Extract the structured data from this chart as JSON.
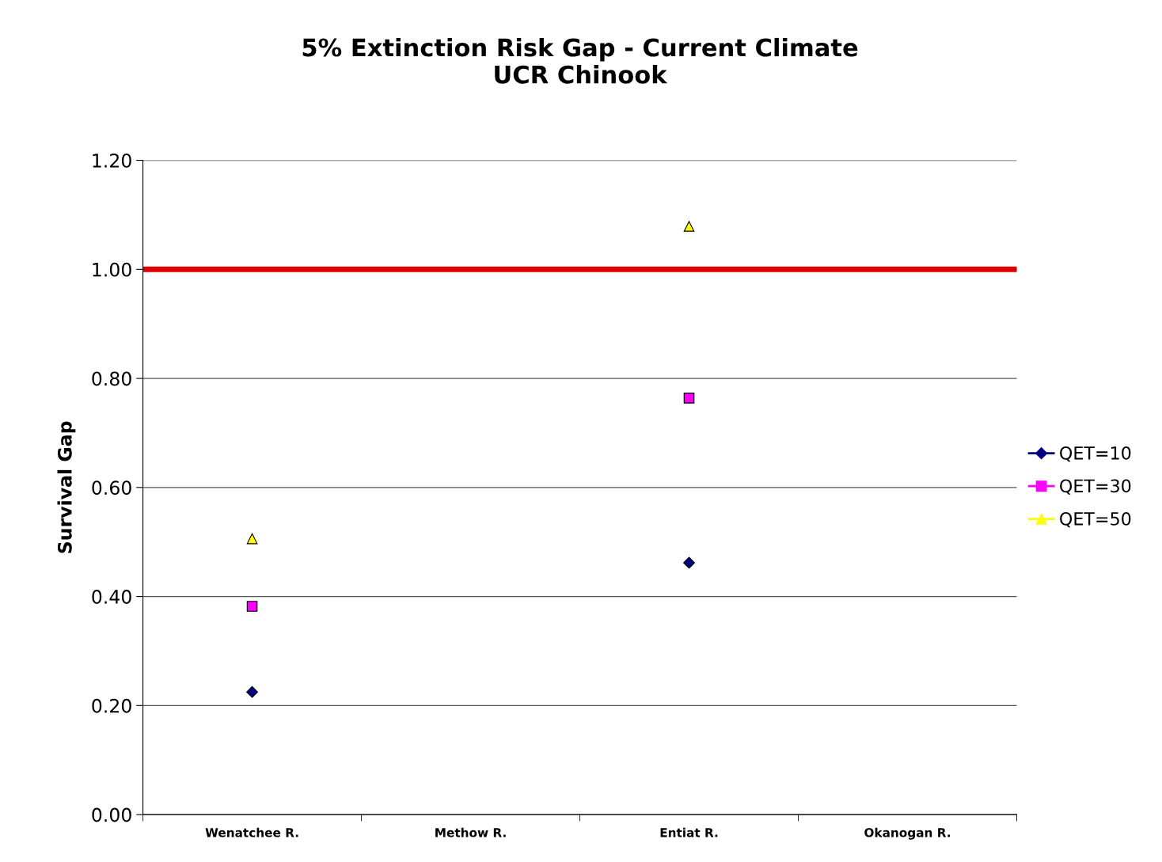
{
  "chart_data": {
    "type": "scatter",
    "title": "5% Extinction Risk Gap - Current Climate\nUCR Chinook",
    "ylabel": "Survival Gap",
    "categories": [
      "Wenatchee R.",
      "Methow R.",
      "Entiat R.",
      "Okanogan R."
    ],
    "series": [
      {
        "name": "QET=10",
        "color": "#000080",
        "marker": "diamond",
        "values": [
          0.225,
          null,
          0.462,
          null
        ]
      },
      {
        "name": "QET=30",
        "color": "#ff00ff",
        "marker": "square",
        "values": [
          0.382,
          null,
          0.764,
          null
        ]
      },
      {
        "name": "QET=50",
        "color": "#ffff00",
        "marker": "triangle",
        "values": [
          0.506,
          null,
          1.079,
          null
        ]
      }
    ],
    "ylim": [
      0,
      1.2
    ],
    "yticks": [
      {
        "value": 0,
        "label": "0.00"
      },
      {
        "value": 0.2,
        "label": "0.20"
      },
      {
        "value": 0.4,
        "label": "0.40"
      },
      {
        "value": 0.6,
        "label": "0.60"
      },
      {
        "value": 0.8,
        "label": "0.80"
      },
      {
        "value": 1.0,
        "label": "1.00"
      },
      {
        "value": 1.2,
        "label": "1.20"
      }
    ],
    "ref_lines": [
      {
        "axis": "y",
        "value": 1.0,
        "color": "#e00000"
      }
    ],
    "grid": "y",
    "legend": "right"
  }
}
